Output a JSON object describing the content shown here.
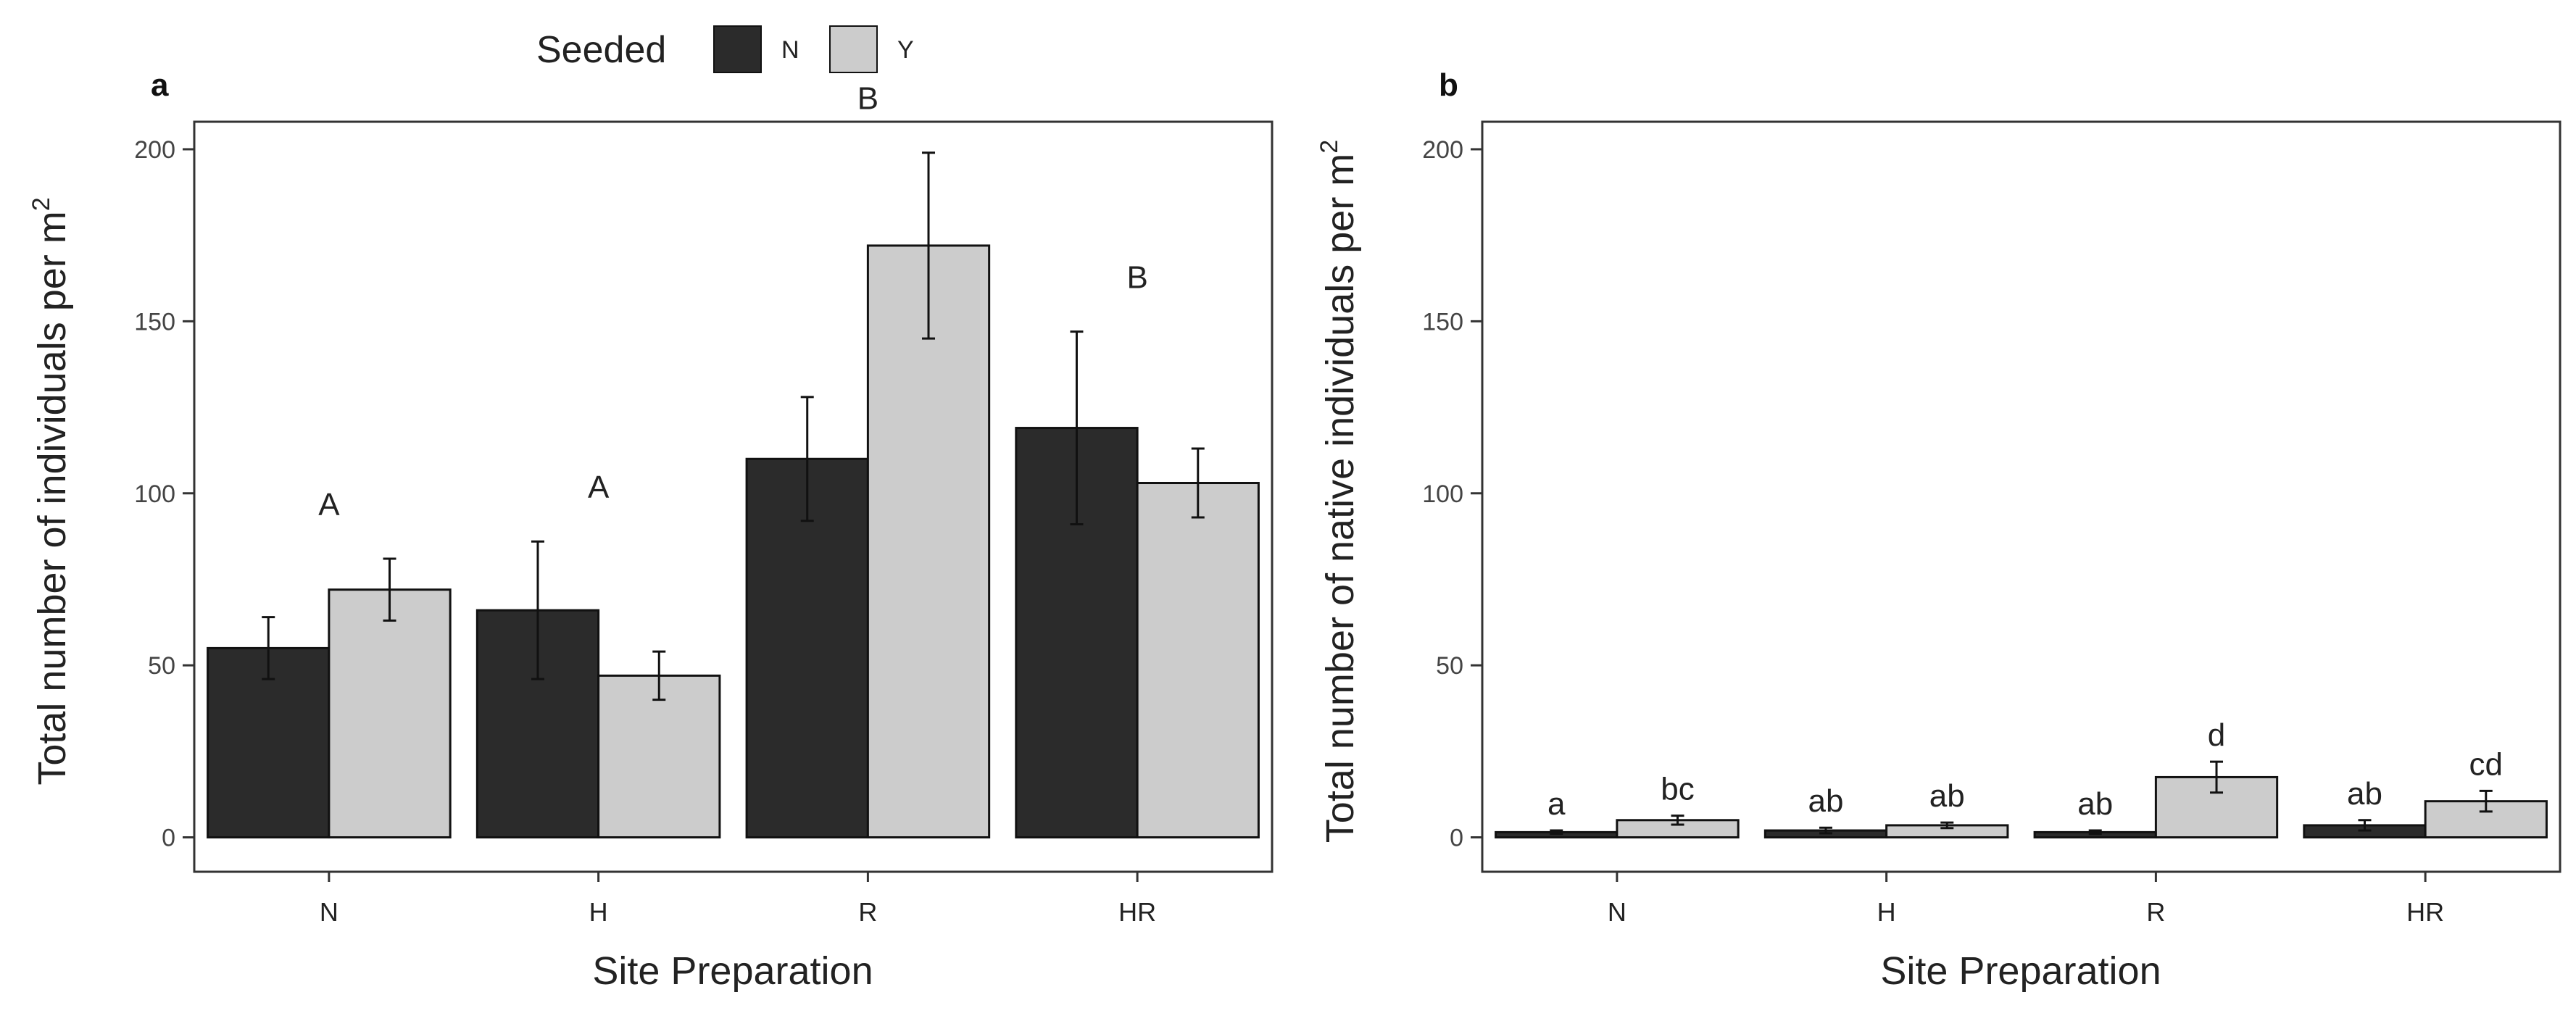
{
  "legend": {
    "title": "Seeded",
    "items": [
      {
        "label": "N",
        "color": "#2b2b2b"
      },
      {
        "label": "Y",
        "color": "#cccccc"
      }
    ]
  },
  "chart_data": [
    {
      "type": "bar",
      "panel_label": "a",
      "categories": [
        "N",
        "H",
        "R",
        "HR"
      ],
      "series": [
        {
          "name": "N",
          "color": "#2b2b2b",
          "values": [
            55,
            66,
            110,
            119
          ],
          "error": [
            9,
            20,
            18,
            28
          ]
        },
        {
          "name": "Y",
          "color": "#cccccc",
          "values": [
            72,
            47,
            172,
            103
          ],
          "error": [
            9,
            7,
            27,
            10
          ]
        }
      ],
      "group_labels": [
        "A",
        "A",
        "B",
        "B"
      ],
      "xlabel": "Site Preparation",
      "ylabel": "Total number of individuals per m",
      "ylabel_superscript": "2",
      "yticks": [
        0,
        50,
        100,
        150,
        200
      ],
      "ylim": [
        -10,
        208
      ]
    },
    {
      "type": "bar",
      "panel_label": "b",
      "categories": [
        "N",
        "H",
        "R",
        "HR"
      ],
      "series": [
        {
          "name": "N",
          "color": "#2b2b2b",
          "values": [
            1.5,
            2,
            1.5,
            3.5
          ],
          "error": [
            0.5,
            0.8,
            0.5,
            1.5
          ]
        },
        {
          "name": "Y",
          "color": "#cccccc",
          "values": [
            5,
            3.5,
            17.5,
            10.5
          ],
          "error": [
            1.3,
            0.8,
            4.5,
            3
          ]
        }
      ],
      "bar_labels": [
        [
          "a",
          "bc"
        ],
        [
          "ab",
          "ab"
        ],
        [
          "ab",
          "d"
        ],
        [
          "ab",
          "cd"
        ]
      ],
      "xlabel": "Site Preparation",
      "ylabel": "Total number of native individuals per m",
      "ylabel_superscript": "2",
      "yticks": [
        0,
        50,
        100,
        150,
        200
      ],
      "ylim": [
        -10,
        208
      ]
    }
  ]
}
